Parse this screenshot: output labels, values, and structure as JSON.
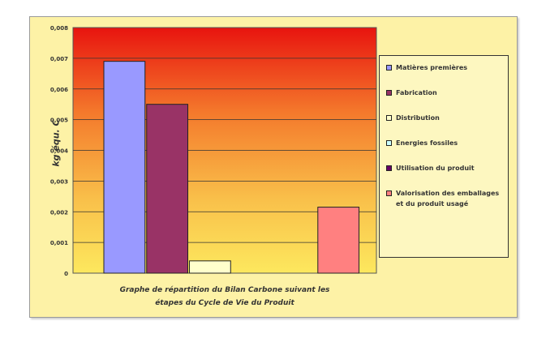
{
  "chart_data": {
    "type": "bar",
    "ylabel": "kg équ. C",
    "xlabel": "Graphe de répartition du Bilan Carbone suivant les\nétapes du Cycle de Vie du Produit",
    "ylim": [
      0,
      0.008
    ],
    "yticks": [
      "0",
      "0,001",
      "0,002",
      "0,003",
      "0,004",
      "0,005",
      "0,006",
      "0,007",
      "0,008"
    ],
    "grid": "horizontal",
    "legend_position": "right",
    "series": [
      {
        "name": "Matières premières",
        "value": 0.0069,
        "color": "#9999ff"
      },
      {
        "name": "Fabrication",
        "value": 0.0055,
        "color": "#993366"
      },
      {
        "name": "Distribution",
        "value": 0.0004,
        "color": "#ffffcc"
      },
      {
        "name": "Energies fossiles",
        "value": 0,
        "color": "#ccffff"
      },
      {
        "name": "Utilisation du produit",
        "value": 0,
        "color": "#660066"
      },
      {
        "name": "Valorisation des emballages\net du produit usagé",
        "value": 0.00215,
        "color": "#ff8080"
      }
    ]
  }
}
